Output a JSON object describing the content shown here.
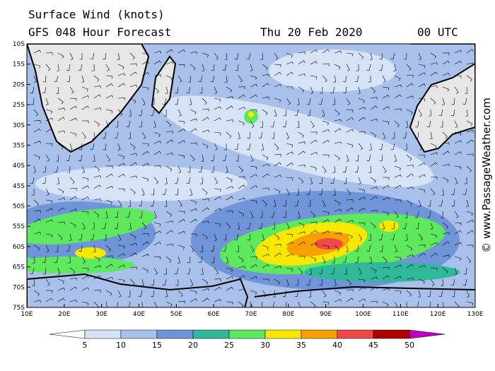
{
  "header": {
    "title": "Surface Wind (knots)",
    "subtitle": "GFS 048 Hour Forecast",
    "date": "Thu 20 Feb 2020",
    "time": "00 UTC"
  },
  "map": {
    "lat_labels": [
      "10S",
      "15S",
      "20S",
      "25S",
      "30S",
      "35S",
      "40S",
      "45S",
      "50S",
      "55S",
      "60S",
      "65S",
      "70S",
      "75S"
    ],
    "lon_labels": [
      "10E",
      "20E",
      "30E",
      "40E",
      "50E",
      "60E",
      "70E",
      "80E",
      "90E",
      "100E",
      "110E",
      "120E",
      "130E"
    ]
  },
  "colorbar": {
    "levels": [
      5,
      10,
      15,
      20,
      25,
      30,
      35,
      40,
      45,
      50
    ],
    "colors": [
      "#ffffff",
      "#d6e2f6",
      "#a8c0ea",
      "#6f94d8",
      "#2fb89a",
      "#5ee85e",
      "#f8e800",
      "#f8a000",
      "#f04848",
      "#b00000",
      "#c000c0"
    ]
  },
  "watermark": "© www.PassageWeather.com"
}
